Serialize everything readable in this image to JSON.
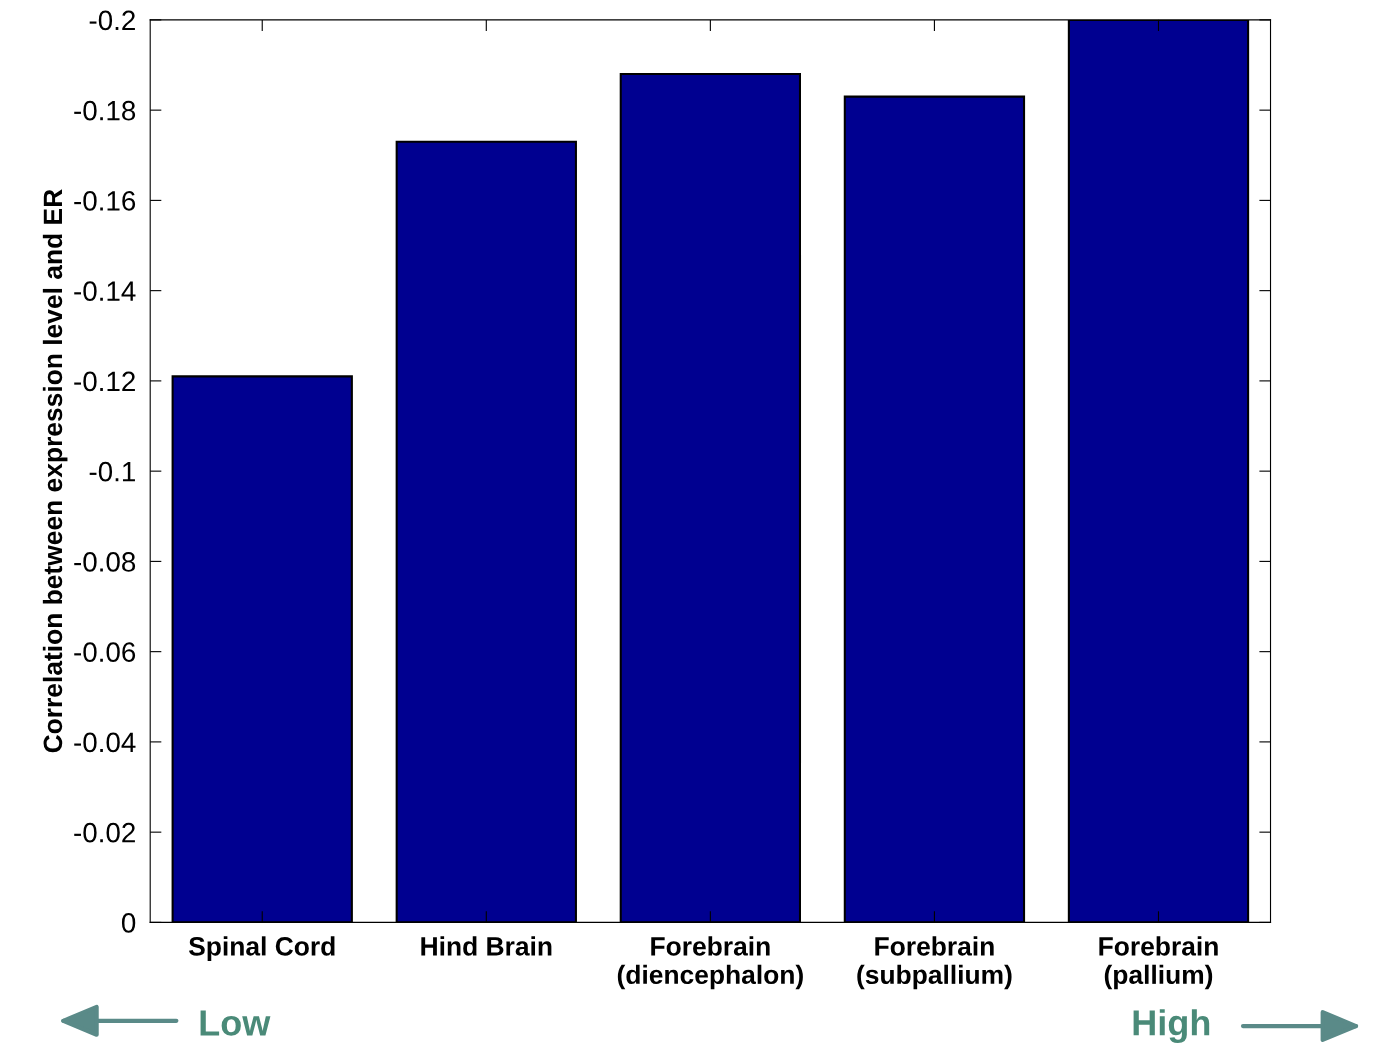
{
  "chart_data": {
    "type": "bar",
    "ylabel": "Correlation between expression level and ER",
    "categories": [
      "Spinal Cord",
      "Hind Brain",
      "Forebrain\n(diencephalon)",
      "Forebrain\n(subpallium)",
      "Forebrain\n(pallium)"
    ],
    "values": [
      -0.121,
      -0.173,
      -0.188,
      -0.183,
      -0.2
    ],
    "color": "#000090",
    "ylim": [
      0,
      -0.2
    ],
    "yticks": [
      0,
      -0.02,
      -0.04,
      -0.06,
      -0.08,
      -0.1,
      -0.12,
      -0.14,
      -0.16,
      -0.18,
      -0.2
    ],
    "grid": false,
    "legend": false,
    "annotations": [
      "Low",
      "High"
    ]
  }
}
